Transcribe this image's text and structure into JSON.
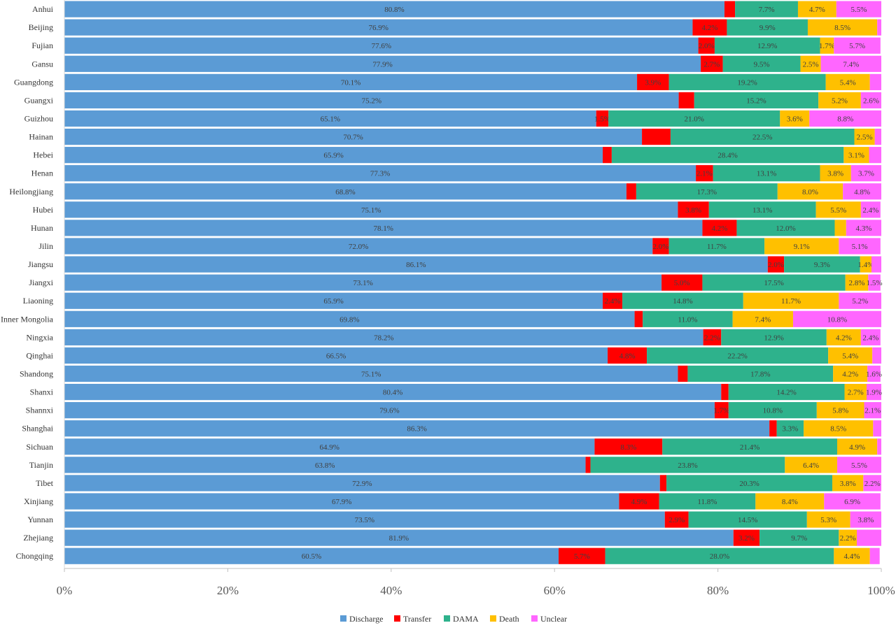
{
  "chart_data": {
    "type": "bar",
    "orientation": "horizontal",
    "stacked": "percent",
    "categories": [
      "Anhui",
      "Beijing",
      "Fujian",
      "Gansu",
      "Guangdong",
      "Guangxi",
      "Guizhou",
      "Hainan",
      "Hebei",
      "Henan",
      "Heilongjiang",
      "Hubei",
      "Hunan",
      "Jilin",
      "Jiangsu",
      "Jiangxi",
      "Liaoning",
      "Inner Mongolia",
      "Ningxia",
      "Qinghai",
      "Shandong",
      "Shanxi",
      "Shannxi",
      "Shanghai",
      "Sichuan",
      "Tianjin",
      "Tibet",
      "Xinjiang",
      "Yunnan",
      "Zhejiang",
      "Chongqing"
    ],
    "series": [
      {
        "name": "Discharge",
        "color": "#5b9bd5",
        "values": [
          80.8,
          76.9,
          77.6,
          77.9,
          70.1,
          75.2,
          65.1,
          70.7,
          65.9,
          77.3,
          68.8,
          75.1,
          78.1,
          72.0,
          86.1,
          73.1,
          65.9,
          69.8,
          78.2,
          66.5,
          75.1,
          80.4,
          79.6,
          86.3,
          64.9,
          63.8,
          72.9,
          67.9,
          73.5,
          81.9,
          60.5
        ],
        "labels": [
          "80.8%",
          "76.9%",
          "77.6%",
          "77.9%",
          "70.1%",
          "75.2%",
          "65.1%",
          "70.7%",
          "65.9%",
          "77.3%",
          "68.8%",
          "75.1%",
          "78.1%",
          "72.0%",
          "86.1%",
          "73.1%",
          "65.9%",
          "69.8%",
          "78.2%",
          "66.5%",
          "75.1%",
          "80.4%",
          "79.6%",
          "86.3%",
          "64.9%",
          "63.8%",
          "72.9%",
          "67.9%",
          "73.5%",
          "81.9%",
          "60.5%"
        ]
      },
      {
        "name": "Transfer",
        "color": "#ff0000",
        "values": [
          1.3,
          4.2,
          2.0,
          2.7,
          3.9,
          1.9,
          1.5,
          3.5,
          1.1,
          2.1,
          1.2,
          3.8,
          4.2,
          2.0,
          2.0,
          5.0,
          2.4,
          1.0,
          2.2,
          4.8,
          1.2,
          0.9,
          1.7,
          0.9,
          8.3,
          0.6,
          0.8,
          4.9,
          2.9,
          3.2,
          5.7
        ],
        "labels": [
          "",
          "4.2%",
          "2.0%",
          "2.7%",
          "3.9%",
          "",
          "1.5%",
          "",
          "",
          "2.1%",
          "",
          "3.8%",
          "4.2%",
          "2.0%",
          "2.0%",
          "5.0%",
          "2.4%",
          "",
          "2.2%",
          "4.8%",
          "",
          "",
          "1.7%",
          "",
          "8.3%",
          "",
          "",
          "4.9%",
          "2.9%",
          "3.2%",
          "5.7%"
        ]
      },
      {
        "name": "DAMA",
        "color": "#2eb28c",
        "values": [
          7.7,
          9.9,
          12.9,
          9.5,
          19.2,
          15.2,
          21.0,
          22.5,
          28.4,
          13.1,
          17.3,
          13.1,
          12.0,
          11.7,
          9.3,
          17.5,
          14.8,
          11.0,
          12.9,
          22.2,
          17.8,
          14.2,
          10.8,
          3.3,
          21.4,
          23.8,
          20.3,
          11.8,
          14.5,
          9.7,
          28.0
        ],
        "labels": [
          "7.7%",
          "9.9%",
          "12.9%",
          "9.5%",
          "19.2%",
          "15.2%",
          "21.0%",
          "22.5%",
          "28.4%",
          "13.1%",
          "17.3%",
          "13.1%",
          "12.0%",
          "11.7%",
          "9.3%",
          "17.5%",
          "14.8%",
          "11.0%",
          "12.9%",
          "22.2%",
          "17.8%",
          "14.2%",
          "10.8%",
          "3.3%",
          "21.4%",
          "23.8%",
          "20.3%",
          "11.8%",
          "14.5%",
          "9.7%",
          "28.0%"
        ]
      },
      {
        "name": "Death",
        "color": "#ffc000",
        "values": [
          4.7,
          8.5,
          1.7,
          2.5,
          5.4,
          5.2,
          3.6,
          2.5,
          3.1,
          3.8,
          8.0,
          5.5,
          1.4,
          9.1,
          1.4,
          2.8,
          11.7,
          7.4,
          4.2,
          5.4,
          4.2,
          2.7,
          5.8,
          8.5,
          4.9,
          6.4,
          3.8,
          8.4,
          5.3,
          2.2,
          4.4
        ],
        "labels": [
          "4.7%",
          "8.5%",
          "1.7%",
          "2.5%",
          "5.4%",
          "5.2%",
          "3.6%",
          "2.5%",
          "3.1%",
          "3.8%",
          "8.0%",
          "5.5%",
          "",
          "9.1%",
          "1.4%",
          "2.8%",
          "11.7%",
          "7.4%",
          "4.2%",
          "5.4%",
          "4.2%",
          "2.7%",
          "5.8%",
          "8.5%",
          "4.9%",
          "6.4%",
          "3.8%",
          "8.4%",
          "5.3%",
          "2.2%",
          "4.4%"
        ]
      },
      {
        "name": "Unclear",
        "color": "#ff66ff",
        "values": [
          5.5,
          0.5,
          5.7,
          7.4,
          1.4,
          2.6,
          8.8,
          0.8,
          1.5,
          3.7,
          4.8,
          2.4,
          4.3,
          5.1,
          1.2,
          1.5,
          5.2,
          10.8,
          2.4,
          1.1,
          1.6,
          1.9,
          2.1,
          1.0,
          0.5,
          5.5,
          2.2,
          6.9,
          3.8,
          3.0,
          1.2
        ],
        "labels": [
          "5.5%",
          "",
          "5.7%",
          "7.4%",
          "",
          "2.6%",
          "8.8%",
          "",
          "",
          "3.7%",
          "4.8%",
          "2.4%",
          "4.3%",
          "5.1%",
          "",
          "1.5%",
          "5.2%",
          "10.8%",
          "2.4%",
          "",
          "1.6%",
          "1.9%",
          "2.1%",
          "",
          "",
          "5.5%",
          "2.2%",
          "6.9%",
          "3.8%",
          "",
          ""
        ]
      }
    ],
    "xlim": [
      0,
      100
    ],
    "xticks": [
      "0%",
      "20%",
      "40%",
      "60%",
      "80%",
      "100%"
    ],
    "xlabel": "",
    "ylabel": "",
    "title": "",
    "grid": false,
    "legend": {
      "position": "bottom",
      "entries": [
        "Discharge",
        "Transfer",
        "DAMA",
        "Death",
        "Unclear"
      ]
    }
  }
}
